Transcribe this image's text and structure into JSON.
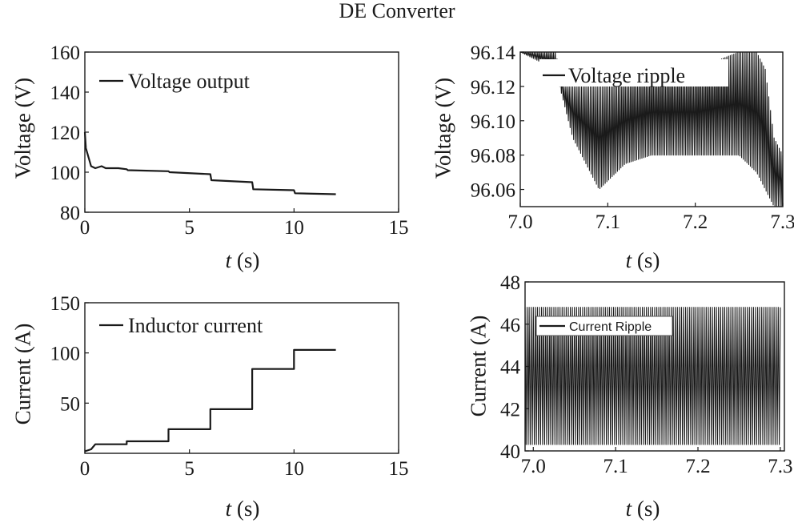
{
  "title": "DE Converter",
  "chart_data": [
    {
      "id": "voltage-output",
      "type": "line",
      "x_ticks": [
        "0",
        "5",
        "10",
        "15"
      ],
      "y_ticks": [
        "80",
        "100",
        "120",
        "140",
        "160"
      ],
      "xlim": [
        0,
        15
      ],
      "ylim": [
        80,
        160
      ],
      "ylabel": "Voltage (V)",
      "xlabel_var": "t",
      "xlabel_unit": " (s)",
      "legend_position": "top-left",
      "grid": false,
      "series": [
        {
          "name": "Voltage output",
          "color": "#1a1a1a",
          "x": [
            0,
            0.05,
            0.3,
            0.5,
            0.8,
            1.0,
            1.2,
            1.6,
            2.0,
            2.05,
            4.0,
            4.05,
            6.0,
            6.05,
            8.0,
            8.05,
            10.0,
            10.05,
            12.0
          ],
          "y": [
            120,
            112,
            103,
            102,
            103,
            102,
            102,
            102,
            101.5,
            101,
            100.5,
            100,
            99,
            96,
            95,
            91.5,
            91,
            89.5,
            89
          ]
        }
      ]
    },
    {
      "id": "voltage-ripple",
      "type": "line",
      "x_ticks": [
        "7.0",
        "7.1",
        "7.2",
        "7.3"
      ],
      "y_ticks": [
        "96.06",
        "96.08",
        "96.10",
        "96.12",
        "96.14"
      ],
      "xlim": [
        7.0,
        7.3
      ],
      "ylim": [
        96.05,
        96.14
      ],
      "ylabel": "Voltage (V)",
      "xlabel_var": "t",
      "xlabel_unit": " (s)",
      "legend_position": "top-center",
      "grid": false,
      "series": [
        {
          "name": "Voltage ripple",
          "color": "#1a1a1a",
          "x_start": 7.0,
          "x_end": 7.3,
          "sample_step": 0.002,
          "envelope_x": [
            7.0,
            7.04,
            7.05,
            7.06,
            7.09,
            7.12,
            7.15,
            7.2,
            7.25,
            7.27,
            7.28,
            7.29,
            7.3
          ],
          "envelope_low": [
            96.14,
            96.13,
            96.11,
            96.09,
            96.06,
            96.075,
            96.08,
            96.08,
            96.08,
            96.07,
            96.06,
            96.05,
            96.05
          ],
          "envelope_high": [
            96.14,
            96.14,
            96.12,
            96.12,
            96.12,
            96.125,
            96.13,
            96.13,
            96.14,
            96.14,
            96.13,
            96.09,
            96.08
          ]
        }
      ]
    },
    {
      "id": "inductor-current",
      "type": "line",
      "x_ticks": [
        "0",
        "5",
        "10",
        "15"
      ],
      "y_ticks": [
        "50",
        "100",
        "150"
      ],
      "xlim": [
        0,
        15
      ],
      "ylim": [
        0,
        150
      ],
      "ylabel": "Current (A)",
      "xlabel_var": "t",
      "xlabel_unit": " (s)",
      "legend_position": "top-left",
      "grid": false,
      "series": [
        {
          "name": "Inductor current",
          "color": "#1a1a1a",
          "x": [
            0,
            0.3,
            0.5,
            1.0,
            1.5,
            2.0,
            2.0,
            4.0,
            4.0,
            6.0,
            6.0,
            8.0,
            8.0,
            10.0,
            10.0,
            12.0
          ],
          "y": [
            2,
            4,
            9,
            9,
            9,
            9,
            12,
            12,
            24,
            24,
            44,
            44,
            84,
            84,
            103,
            103
          ]
        }
      ]
    },
    {
      "id": "current-ripple",
      "type": "line",
      "x_ticks": [
        "7.0",
        "7.1",
        "7.2",
        "7.3"
      ],
      "y_ticks": [
        "40",
        "42",
        "44",
        "46",
        "48"
      ],
      "xlim": [
        6.99,
        7.305
      ],
      "ylim": [
        40,
        48
      ],
      "ylabel": "Current (A)",
      "xlabel_var": "t",
      "xlabel_unit": " (s)",
      "legend_position": "top-left",
      "grid": false,
      "series": [
        {
          "name": "Current Ripple",
          "color": "#1a1a1a",
          "x_start": 6.99,
          "x_end": 7.3,
          "sample_step": 0.0025,
          "envelope_x": [
            6.99,
            7.3
          ],
          "envelope_low": [
            40.3,
            40.3
          ],
          "envelope_high": [
            46.8,
            46.8
          ]
        }
      ]
    }
  ]
}
